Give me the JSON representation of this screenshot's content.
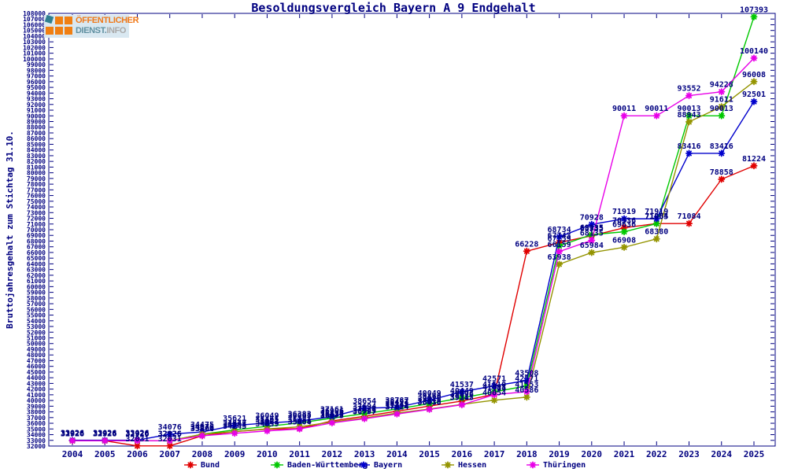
{
  "logo": {
    "line1": "ÖFFENTLICHER",
    "line2_a": "DIENST.",
    "line2_b": "INFO"
  },
  "chart_data": {
    "type": "line",
    "title": "Besoldungsvergleich Bayern A 9 Endgehalt",
    "xlabel": "",
    "ylabel": "Bruttojahresgehalt zum Stichtag 31.10.",
    "ylim": [
      32000,
      108000
    ],
    "ytick_step": 1000,
    "grid": false,
    "legend_position": "bottom",
    "point_labels": true,
    "axis_color": "#000080",
    "categories": [
      2004,
      2005,
      2006,
      2007,
      2008,
      2009,
      2010,
      2011,
      2012,
      2013,
      2014,
      2015,
      2016,
      2017,
      2018,
      2019,
      2020,
      2021,
      2022,
      2023,
      2024,
      2025
    ],
    "series": [
      {
        "name": "Bund",
        "color": "#e00000",
        "values": [
          32926,
          32926,
          32031,
          32031,
          33804,
          34543,
          34963,
          35068,
          36420,
          37227,
          38119,
          39016,
          39896,
          41081,
          66228,
          67743,
          68935,
          70336,
          71084,
          71084,
          78858,
          81224
        ]
      },
      {
        "name": "Baden-Württemberg",
        "color": "#00c800",
        "values": [
          32926,
          32926,
          32926,
          32926,
          34076,
          34847,
          35465,
          36065,
          36906,
          37694,
          38497,
          39460,
          40449,
          41510,
          42571,
          67159,
          69135,
          69636,
          71065,
          90013,
          90013,
          107393
        ]
      },
      {
        "name": "Bayern",
        "color": "#0000cc",
        "values": [
          33026,
          33026,
          33026,
          34076,
          34475,
          35621,
          36049,
          36383,
          37161,
          38654,
          38787,
          40049,
          41537,
          42571,
          43508,
          68734,
          70928,
          71919,
          71919,
          83416,
          83416,
          92501
        ]
      },
      {
        "name": "Hessen",
        "color": "#949400",
        "values": [
          32926,
          32926,
          32926,
          32926,
          34076,
          34545,
          35021,
          35381,
          36222,
          36929,
          37794,
          38510,
          39312,
          40054,
          40586,
          63938,
          65984,
          66908,
          68380,
          88943,
          91611,
          96008
        ]
      },
      {
        "name": "Thüringen",
        "color": "#e800e8",
        "values": [
          32926,
          32926,
          32926,
          32926,
          33806,
          34243,
          34659,
          35004,
          36075,
          36797,
          37624,
          38438,
          39245,
          41018,
          41553,
          66159,
          68135,
          90011,
          90011,
          93552,
          94228,
          100140
        ]
      }
    ]
  }
}
